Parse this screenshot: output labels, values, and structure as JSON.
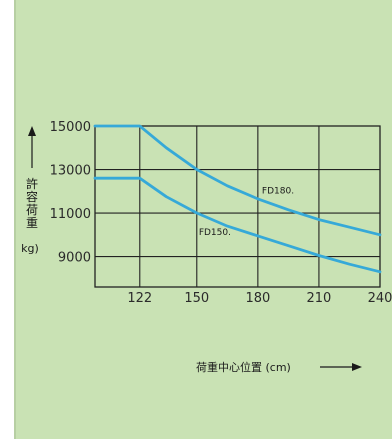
{
  "colors": {
    "panel_background": "#c9e2b4",
    "plot_background": "#c9e2b4",
    "grid": "#222222",
    "series": "#36a9d8"
  },
  "chart_data": {
    "type": "line",
    "xlabel": "荷重中心位置 (cm)",
    "ylabel": "許容荷重",
    "ylabel_unit": "kg)",
    "xlim": [
      100,
      240
    ],
    "ylim": [
      7600,
      15000
    ],
    "x_ticks": [
      122,
      150,
      180,
      210,
      240
    ],
    "y_ticks": [
      15000,
      13000,
      11000,
      9000
    ],
    "x_tick_labels": [
      "122",
      "150",
      "180",
      "210",
      "240"
    ],
    "y_tick_labels": [
      "15000",
      "13000",
      "11000",
      "9000"
    ],
    "grid": true,
    "series": [
      {
        "name": "FD180",
        "label_mark": ".",
        "x": [
          100,
          122,
          135,
          150,
          165,
          180,
          195,
          210,
          225,
          240
        ],
        "y": [
          15000,
          15000,
          14000,
          13000,
          12250,
          11650,
          11150,
          10700,
          10350,
          10000
        ]
      },
      {
        "name": "FD150",
        "label_mark": ".",
        "x": [
          100,
          122,
          135,
          150,
          165,
          180,
          195,
          210,
          225,
          240
        ],
        "y": [
          12600,
          12600,
          11750,
          11000,
          10400,
          9950,
          9500,
          9050,
          8650,
          8300
        ]
      }
    ]
  }
}
